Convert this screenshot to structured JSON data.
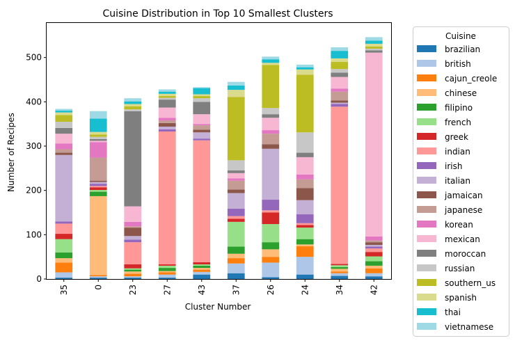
{
  "chart_data": {
    "type": "bar",
    "stacked": true,
    "title": "Cuisine Distribution in Top 10 Smallest Clusters",
    "xlabel": "Cluster Number",
    "ylabel": "Number of Recipes",
    "ylim": [
      0,
      578
    ],
    "yticks": [
      0,
      100,
      200,
      300,
      400,
      500
    ],
    "grid": false,
    "legend": {
      "title": "Cuisine",
      "placement": "outside-right"
    },
    "categories": [
      "35",
      "0",
      "23",
      "27",
      "43",
      "37",
      "26",
      "24",
      "34",
      "42"
    ],
    "series": [
      {
        "name": "brazilian",
        "color": "#1f77b4",
        "values": [
          3,
          3,
          3,
          3,
          10,
          13,
          4,
          10,
          7,
          6
        ]
      },
      {
        "name": "british",
        "color": "#aec7e8",
        "values": [
          12,
          3,
          3,
          7,
          6,
          22,
          33,
          40,
          6,
          7
        ]
      },
      {
        "name": "cajun_creole",
        "color": "#ff7f0e",
        "values": [
          22,
          3,
          6,
          5,
          5,
          12,
          13,
          24,
          4,
          11
        ]
      },
      {
        "name": "chinese",
        "color": "#ffbb78",
        "values": [
          10,
          178,
          5,
          3,
          4,
          10,
          17,
          4,
          6,
          6
        ]
      },
      {
        "name": "filipino",
        "color": "#2ca02c",
        "values": [
          13,
          10,
          4,
          7,
          5,
          16,
          16,
          12,
          4,
          10
        ]
      },
      {
        "name": "french",
        "color": "#98df8a",
        "values": [
          30,
          4,
          3,
          5,
          3,
          56,
          41,
          26,
          4,
          11
        ]
      },
      {
        "name": "greek",
        "color": "#d62728",
        "values": [
          12,
          6,
          9,
          3,
          5,
          7,
          26,
          6,
          3,
          10
        ]
      },
      {
        "name": "indian",
        "color": "#ff9896",
        "values": [
          23,
          3,
          50,
          300,
          275,
          6,
          5,
          4,
          355,
          8
        ]
      },
      {
        "name": "irish",
        "color": "#9467bd",
        "values": [
          5,
          5,
          6,
          5,
          4,
          17,
          24,
          20,
          6,
          4
        ]
      },
      {
        "name": "italian",
        "color": "#c5b0d5",
        "values": [
          150,
          4,
          8,
          6,
          14,
          35,
          115,
          32,
          3,
          4
        ]
      },
      {
        "name": "jamaican",
        "color": "#8c564b",
        "values": [
          5,
          3,
          19,
          8,
          6,
          8,
          10,
          27,
          5,
          6
        ]
      },
      {
        "name": "japanese",
        "color": "#c49c94",
        "values": [
          8,
          52,
          3,
          6,
          10,
          20,
          24,
          20,
          20,
          4
        ]
      },
      {
        "name": "korean",
        "color": "#e377c2",
        "values": [
          13,
          35,
          10,
          6,
          3,
          5,
          8,
          11,
          7,
          9
        ]
      },
      {
        "name": "mexican",
        "color": "#f7b6d2",
        "values": [
          22,
          3,
          35,
          23,
          22,
          12,
          28,
          39,
          26,
          415
        ]
      },
      {
        "name": "moroccan",
        "color": "#7f7f7f",
        "values": [
          13,
          4,
          215,
          18,
          28,
          6,
          8,
          10,
          10,
          5
        ]
      },
      {
        "name": "russian",
        "color": "#c7c7c7",
        "values": [
          14,
          5,
          4,
          4,
          8,
          23,
          14,
          46,
          8,
          4
        ]
      },
      {
        "name": "southern_us",
        "color": "#bcbd22",
        "values": [
          15,
          5,
          7,
          4,
          5,
          143,
          97,
          130,
          16,
          5
        ]
      },
      {
        "name": "spanish",
        "color": "#dbdb8d",
        "values": [
          6,
          6,
          5,
          5,
          4,
          16,
          5,
          12,
          8,
          6
        ]
      },
      {
        "name": "thai",
        "color": "#17becf",
        "values": [
          4,
          30,
          6,
          5,
          14,
          10,
          8,
          5,
          17,
          7
        ]
      },
      {
        "name": "vietnamese",
        "color": "#9edae5",
        "values": [
          4,
          17,
          7,
          5,
          2,
          8,
          6,
          6,
          8,
          8
        ]
      }
    ]
  }
}
